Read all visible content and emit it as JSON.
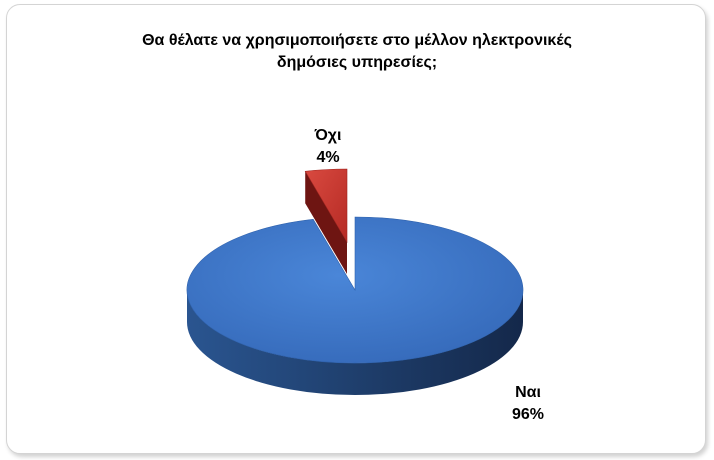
{
  "chart_data": {
    "type": "pie",
    "title_lines": [
      "Θα θέλατε να χρησιμοποιήσετε στο μέλλον ηλεκτρονικές",
      "δημόσιες υπηρεσίες;"
    ],
    "exploded": "Όχι",
    "slices": [
      {
        "label": "Ναι",
        "value": 96,
        "display": "96%",
        "color": "#3b78cc",
        "side_color": "#23467a"
      },
      {
        "label": "Όχι",
        "value": 4,
        "display": "4%",
        "color": "#c8322c",
        "side_color": "#6e1512"
      }
    ]
  }
}
